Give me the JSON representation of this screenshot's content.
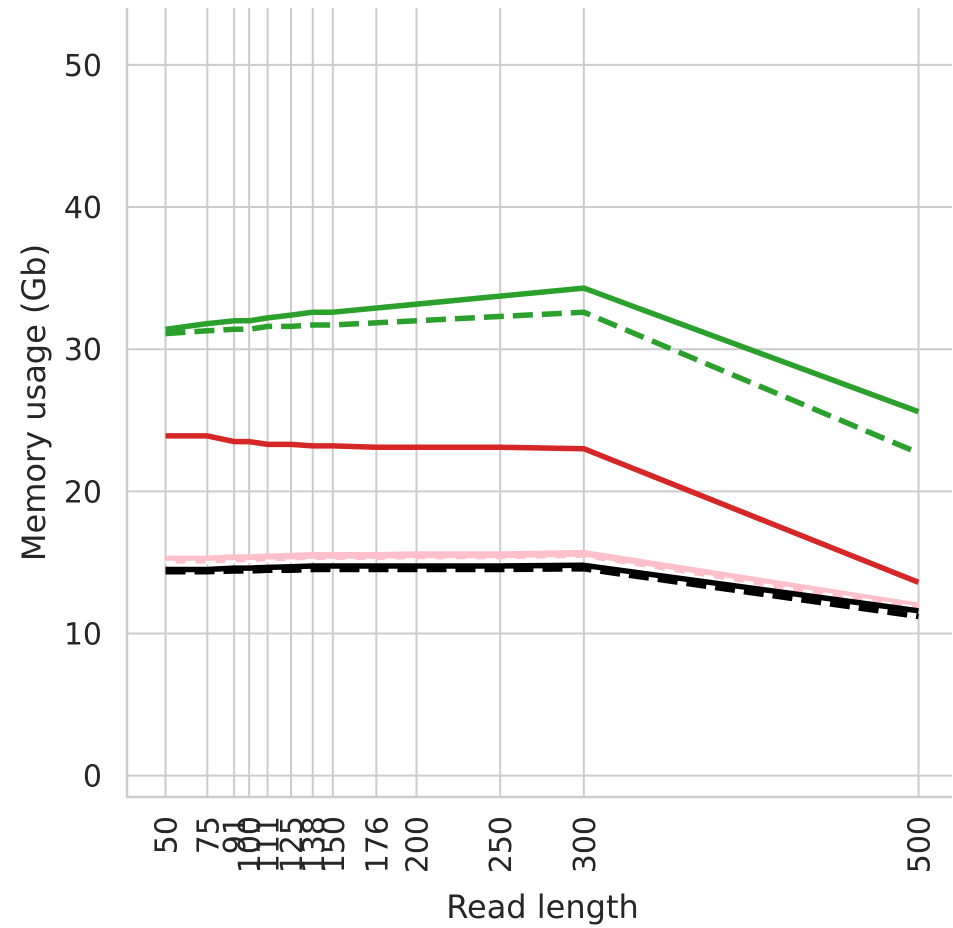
{
  "chart_data": {
    "type": "line",
    "title": "",
    "xlabel": "Read length",
    "ylabel": "Memory usage (Gb)",
    "xticks": [
      50,
      75,
      91,
      100,
      111,
      125,
      138,
      150,
      176,
      200,
      250,
      300,
      500
    ],
    "xtick_labels": [
      "50",
      "75",
      "91",
      "100",
      "111",
      "125",
      "138",
      "150",
      "176",
      "200",
      "250",
      "300",
      "500"
    ],
    "yticks": [
      0,
      10,
      20,
      30,
      40,
      50
    ],
    "ytick_labels": [
      "0",
      "10",
      "20",
      "30",
      "40",
      "50"
    ],
    "xlim": [
      27,
      520
    ],
    "ylim": [
      -1.5,
      54
    ],
    "grid": true,
    "series": [
      {
        "color": "#2ca02c",
        "style": "solid",
        "x": [
          50,
          75,
          91,
          100,
          111,
          125,
          138,
          150,
          300,
          500
        ],
        "y": [
          31.4,
          31.8,
          32.0,
          32.0,
          32.2,
          32.4,
          32.6,
          32.6,
          34.3,
          25.6
        ]
      },
      {
        "color": "#2ca02c",
        "style": "dashed",
        "x": [
          50,
          75,
          91,
          100,
          111,
          125,
          138,
          150,
          300,
          500
        ],
        "y": [
          31.1,
          31.3,
          31.4,
          31.4,
          31.6,
          31.6,
          31.7,
          31.7,
          32.6,
          22.7
        ]
      },
      {
        "color": "#d62728",
        "style": "solid",
        "x": [
          50,
          75,
          91,
          100,
          111,
          125,
          138,
          150,
          176,
          200,
          250,
          300,
          500
        ],
        "y": [
          23.9,
          23.9,
          23.5,
          23.5,
          23.3,
          23.3,
          23.2,
          23.2,
          23.1,
          23.1,
          23.1,
          23.0,
          13.6
        ]
      },
      {
        "color": "#ffc0cb",
        "style": "solid",
        "x": [
          50,
          75,
          91,
          100,
          111,
          125,
          138,
          150,
          176,
          200,
          250,
          300,
          500
        ],
        "y": [
          15.2,
          15.2,
          15.3,
          15.3,
          15.35,
          15.4,
          15.45,
          15.45,
          15.45,
          15.5,
          15.5,
          15.6,
          11.9
        ]
      },
      {
        "color": "#ffffff",
        "style": "dashed",
        "x": [
          50,
          75,
          91,
          100,
          111,
          125,
          138,
          150,
          176,
          200,
          250,
          300,
          500
        ],
        "y": [
          15.0,
          15.0,
          15.05,
          15.05,
          15.1,
          15.1,
          15.15,
          15.15,
          15.15,
          15.2,
          15.2,
          15.3,
          11.8
        ]
      },
      {
        "color": "#000000",
        "style": "solid",
        "x": [
          50,
          75,
          91,
          100,
          111,
          125,
          138,
          150,
          176,
          200,
          250,
          300,
          500
        ],
        "y": [
          14.5,
          14.5,
          14.6,
          14.6,
          14.65,
          14.7,
          14.75,
          14.75,
          14.75,
          14.75,
          14.75,
          14.8,
          11.6
        ]
      },
      {
        "color": "#000000",
        "style": "dashed",
        "x": [
          50,
          75,
          91,
          100,
          111,
          125,
          138,
          150,
          176,
          200,
          250,
          300,
          500
        ],
        "y": [
          14.35,
          14.35,
          14.4,
          14.4,
          14.45,
          14.45,
          14.5,
          14.5,
          14.5,
          14.5,
          14.5,
          14.55,
          11.2
        ]
      }
    ]
  }
}
